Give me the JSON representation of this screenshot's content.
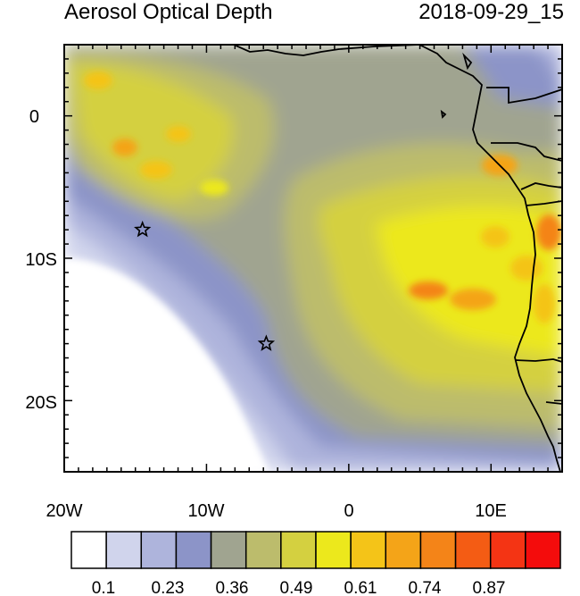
{
  "title": "Aerosol Optical Depth",
  "timestamp": "2018-09-29_15",
  "x_ticks": [
    "20W",
    "10W",
    "0",
    "10E"
  ],
  "y_ticks": [
    "0",
    "10S",
    "20S"
  ],
  "colorbar": {
    "labels": [
      "0.1",
      "0.23",
      "0.36",
      "0.49",
      "0.61",
      "0.74",
      "0.87"
    ],
    "colors": [
      "#ffffff",
      "#d0d4ec",
      "#aeb4dc",
      "#8c94c8",
      "#a0a490",
      "#bcbc6c",
      "#d4d040",
      "#ece81c",
      "#f4c418",
      "#f4a418",
      "#f48418",
      "#f45c14",
      "#f43414",
      "#f40c0c"
    ]
  },
  "map": {
    "lon_range": [
      -20,
      15
    ],
    "lat_range": [
      -25,
      5
    ],
    "markers": [
      {
        "name": "star-marker",
        "lon": -14.5,
        "lat": -8
      },
      {
        "name": "star-marker",
        "lon": -5.8,
        "lat": -16
      }
    ]
  }
}
